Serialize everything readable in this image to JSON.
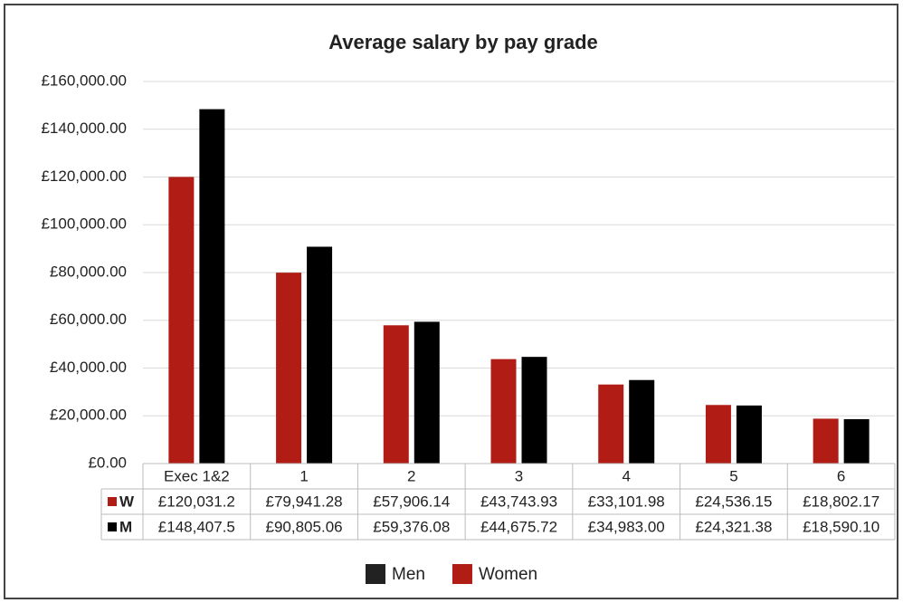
{
  "chart_data": {
    "type": "bar",
    "title": "Average salary by pay grade",
    "categories": [
      "Exec 1&2",
      "1",
      "2",
      "3",
      "4",
      "5",
      "6"
    ],
    "series": [
      {
        "name": "Women",
        "short_name": "W",
        "color": "#b11d14",
        "values": [
          120031.2,
          79941.28,
          57906.14,
          43743.93,
          33101.98,
          24536.15,
          18802.17
        ],
        "value_labels": [
          "£120,031.2",
          "£79,941.28",
          "£57,906.14",
          "£43,743.93",
          "£33,101.98",
          "£24,536.15",
          "£18,802.17"
        ]
      },
      {
        "name": "Men",
        "short_name": "M",
        "color": "#000000",
        "values": [
          148407.5,
          90805.06,
          59376.08,
          44675.72,
          34983.0,
          24321.38,
          18590.1
        ],
        "value_labels": [
          "£148,407.5",
          "£90,805.06",
          "£59,376.08",
          "£44,675.72",
          "£34,983.00",
          "£24,321.38",
          "£18,590.10"
        ]
      }
    ],
    "ylim": [
      0,
      160000
    ],
    "yticks": [
      {
        "value": 0,
        "label": "£0.00"
      },
      {
        "value": 20000,
        "label": "£20,000.00"
      },
      {
        "value": 40000,
        "label": "£40,000.00"
      },
      {
        "value": 60000,
        "label": "£60,000.00"
      },
      {
        "value": 80000,
        "label": "£80,000.00"
      },
      {
        "value": 100000,
        "label": "£100,000.00"
      },
      {
        "value": 120000,
        "label": "£120,000.00"
      },
      {
        "value": 140000,
        "label": "£140,000.00"
      },
      {
        "value": 160000,
        "label": "£160,000.00"
      }
    ],
    "grid": true,
    "legend_order": [
      1,
      0
    ]
  }
}
